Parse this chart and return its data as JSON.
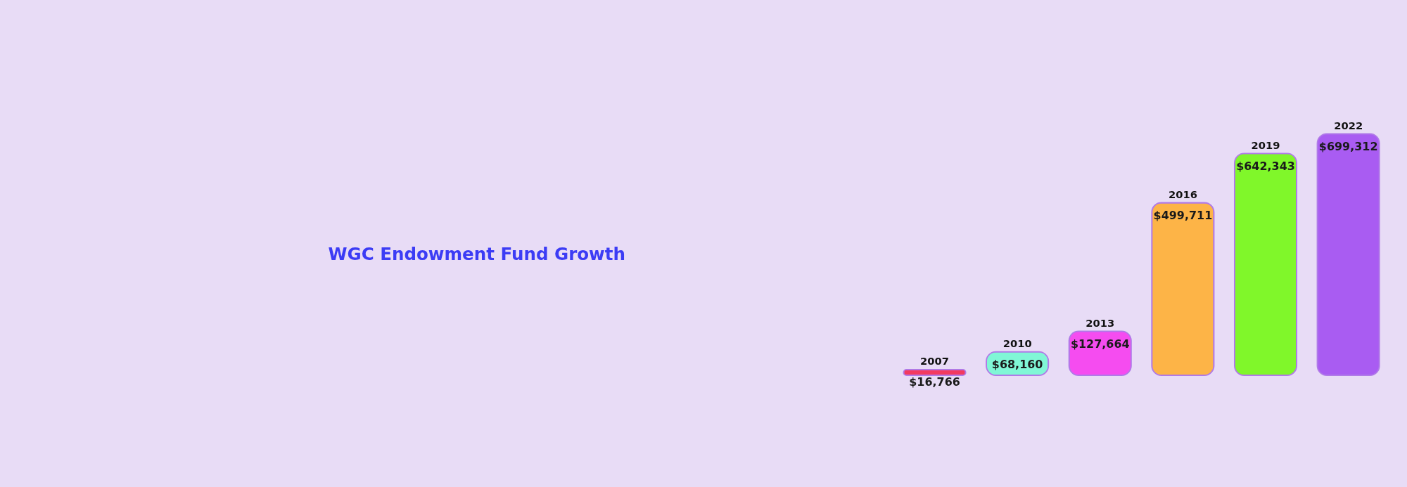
{
  "chart_data": {
    "type": "bar",
    "title": "WGC Endowment Fund Growth",
    "categories": [
      "2007",
      "2010",
      "2013",
      "2016",
      "2019",
      "2022"
    ],
    "values": [
      16766,
      68160,
      127664,
      499711,
      642343,
      699312
    ],
    "colors": [
      "#f23a60",
      "#80f7d6",
      "#f54cf0",
      "#fdb447",
      "#80f72a",
      "#a95cf2"
    ],
    "value_labels": [
      "$16,766",
      "$68,160",
      "$127,664",
      "$499,711",
      "$642,343",
      "$699,312"
    ]
  }
}
